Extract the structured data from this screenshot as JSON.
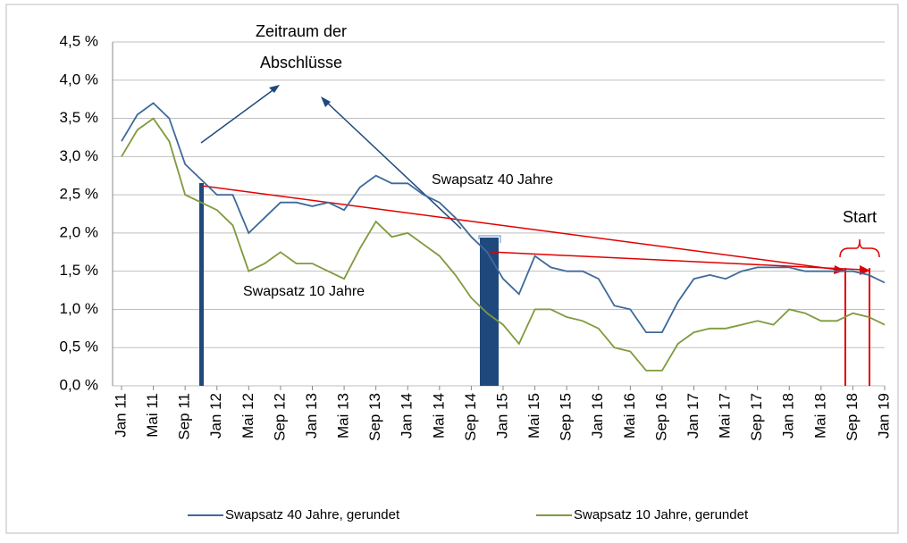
{
  "chart_data": {
    "type": "line",
    "categories": [
      "Jan 11",
      null,
      "Mai 11",
      null,
      "Sep 11",
      null,
      "Jan 12",
      null,
      "Mai 12",
      null,
      "Sep 12",
      null,
      "Jan 13",
      null,
      "Mai 13",
      null,
      "Sep 13",
      null,
      "Jan 14",
      null,
      "Mai 14",
      null,
      "Sep 14",
      null,
      "Jan 15",
      null,
      "Mai 15",
      null,
      "Sep 15",
      null,
      "Jan 16",
      null,
      "Mai 16",
      null,
      "Sep 16",
      null,
      "Jan 17",
      null,
      "Mai 17",
      null,
      "Sep 17",
      null,
      "Jan 18",
      null,
      "Mai 18",
      null,
      "Sep 18",
      null,
      "Jan 19"
    ],
    "series": [
      {
        "name": "Swapsatz 40 Jahre, gerundet",
        "color": "#3d6a9b",
        "values": [
          3.2,
          3.55,
          3.7,
          3.5,
          2.9,
          2.7,
          2.5,
          2.5,
          2.0,
          2.2,
          2.4,
          2.4,
          2.35,
          2.4,
          2.3,
          2.6,
          2.75,
          2.65,
          2.65,
          2.5,
          2.4,
          2.2,
          1.95,
          1.75,
          1.4,
          1.2,
          1.7,
          1.55,
          1.5,
          1.5,
          1.4,
          1.05,
          1.0,
          0.7,
          0.7,
          1.1,
          1.4,
          1.45,
          1.4,
          1.5,
          1.55,
          1.55,
          1.55,
          1.5,
          1.5,
          1.5,
          1.5,
          1.45,
          1.35
        ]
      },
      {
        "name": "Swapsatz 10 Jahre, gerundet",
        "color": "#7f9a3c",
        "values": [
          3.0,
          3.35,
          3.5,
          3.2,
          2.5,
          2.4,
          2.3,
          2.1,
          1.5,
          1.6,
          1.75,
          1.6,
          1.6,
          1.5,
          1.4,
          1.8,
          2.15,
          1.95,
          2.0,
          1.85,
          1.7,
          1.45,
          1.15,
          0.95,
          0.8,
          0.55,
          1.0,
          1.0,
          0.9,
          0.85,
          0.75,
          0.5,
          0.45,
          0.2,
          0.2,
          0.55,
          0.7,
          0.75,
          0.75,
          0.8,
          0.85,
          0.8,
          1.0,
          0.95,
          0.85,
          0.85,
          0.95,
          0.9,
          0.8
        ]
      }
    ],
    "ylim": [
      0,
      4.5
    ],
    "yticks": [
      {
        "value": 0,
        "label": "0,0 %"
      },
      {
        "value": 0.5,
        "label": "0,5 %"
      },
      {
        "value": 1,
        "label": "1,0 %"
      },
      {
        "value": 1.5,
        "label": "1,5 %"
      },
      {
        "value": 2,
        "label": "2,0 %"
      },
      {
        "value": 2.5,
        "label": "2,5 %"
      },
      {
        "value": 3,
        "label": "3,0 %"
      },
      {
        "value": 3.5,
        "label": "3,5 %"
      },
      {
        "value": 4,
        "label": "4,0 %"
      },
      {
        "value": 4.5,
        "label": "4,5 %"
      }
    ],
    "grid": true,
    "annotations": [
      "Zeitraum der",
      "Abschlüsse",
      "Swapsatz 40 Jahre",
      "Swapsatz 10 Jahre",
      "Start"
    ],
    "legend": "bottom"
  }
}
